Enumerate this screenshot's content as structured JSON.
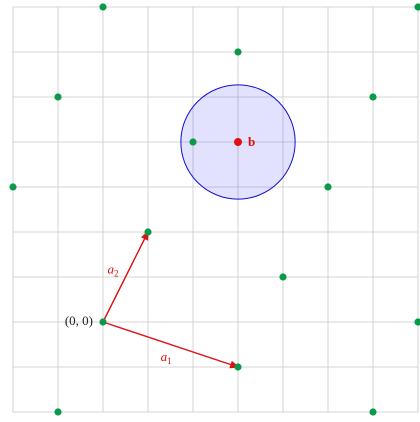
{
  "lattice": {
    "xlim": [
      -2,
      7
    ],
    "ylim": [
      -2,
      7
    ],
    "points": [
      [
        0,
        7
      ],
      [
        7,
        7
      ],
      [
        3,
        6
      ],
      [
        -1,
        5
      ],
      [
        6,
        5
      ],
      [
        2,
        4
      ],
      [
        -2,
        3
      ],
      [
        5,
        3
      ],
      [
        1,
        2
      ],
      [
        4,
        1
      ],
      [
        0,
        0
      ],
      [
        7,
        0
      ],
      [
        3,
        -1
      ],
      [
        -1,
        -2
      ],
      [
        6,
        -2
      ]
    ],
    "point_color": "#0a9a4a",
    "origin_label": "(0, 0)",
    "vectors": [
      {
        "name": "a",
        "sub": "1",
        "to": [
          3,
          -1
        ],
        "color": "#e01010"
      },
      {
        "name": "a",
        "sub": "2",
        "to": [
          1,
          2
        ],
        "color": "#e01010"
      }
    ],
    "target": {
      "label": "b",
      "at": [
        3,
        4
      ],
      "radius": 1.27,
      "color": "#e01010"
    }
  }
}
